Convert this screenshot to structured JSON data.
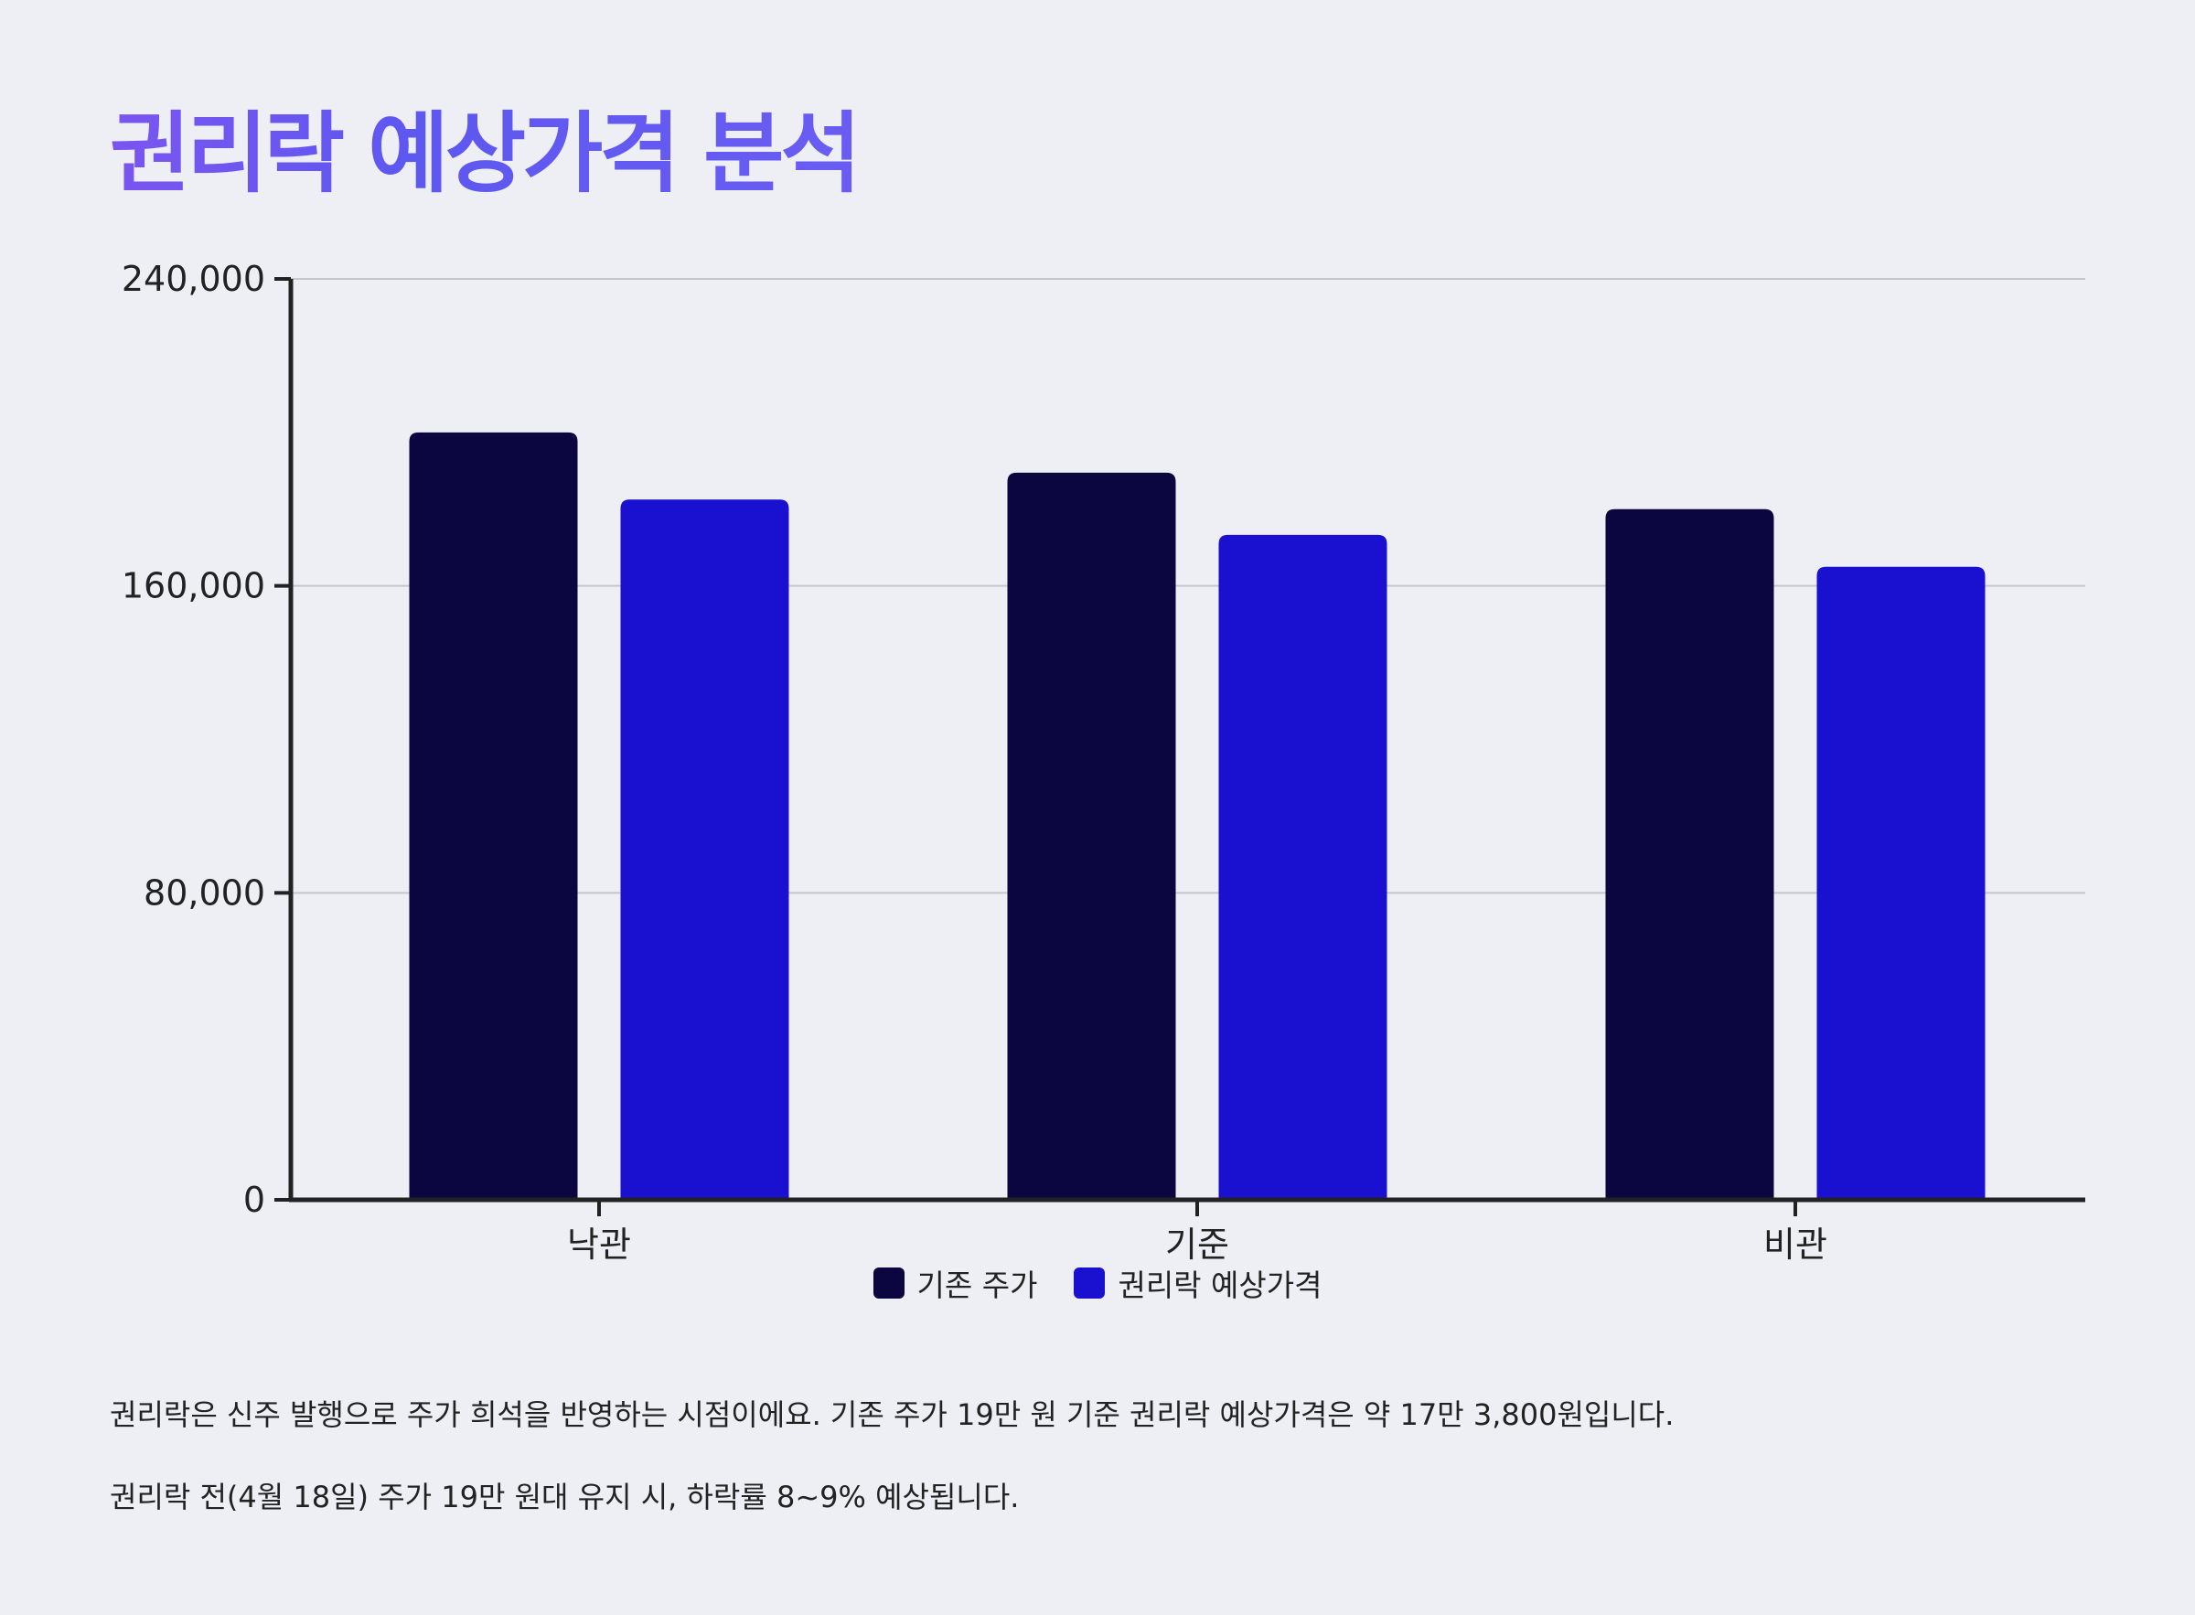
{
  "title": "권리락 예상가격 분석",
  "chart_data": {
    "type": "bar",
    "categories": [
      "낙관",
      "기준",
      "비관"
    ],
    "series": [
      {
        "name": "기존 주가",
        "color": "#0b0640",
        "values": [
          200000,
          189500,
          180000
        ]
      },
      {
        "name": "권리락 예상가격",
        "color": "#1a10d0",
        "values": [
          182500,
          173300,
          165000
        ]
      }
    ],
    "ylim": [
      0,
      240000
    ],
    "yticks": [
      0,
      80000,
      160000,
      240000
    ],
    "ytick_labels": [
      "0",
      "80,000",
      "160,000",
      "240,000"
    ],
    "grid": true,
    "legend_position": "bottom-center",
    "xlabel": "",
    "ylabel": ""
  },
  "notes": [
    "권리락은 신주 발행으로 주가 희석을 반영하는 시점이에요. 기존 주가 19만 원 기준 권리락 예상가격은 약 17만 3,800원입니다.",
    "권리락 전(4월 18일) 주가 19만 원대 유지 시, 하락률 8~9% 예상됩니다."
  ]
}
